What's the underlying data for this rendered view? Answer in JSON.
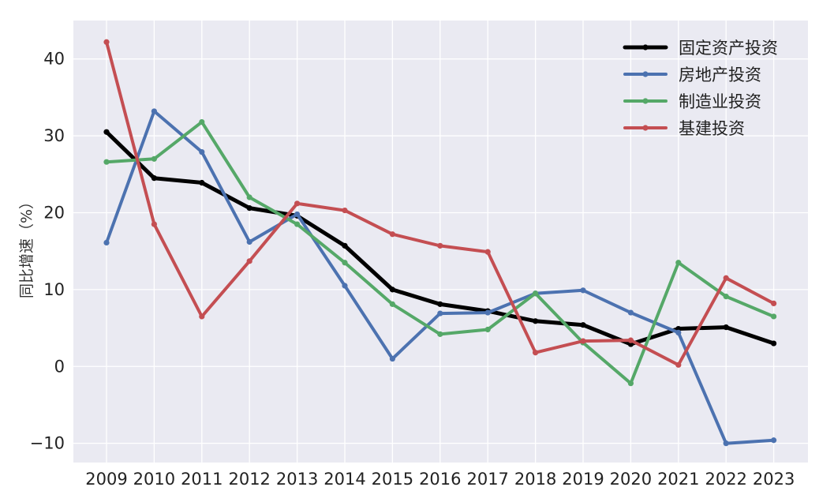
{
  "chart_data": {
    "type": "line",
    "title": "",
    "xlabel": "",
    "ylabel": "同比增速（%）",
    "categories": [
      "2009",
      "2010",
      "2011",
      "2012",
      "2013",
      "2014",
      "2015",
      "2016",
      "2017",
      "2018",
      "2019",
      "2020",
      "2021",
      "2022",
      "2023"
    ],
    "ylim": [
      -12.5,
      45
    ],
    "yticks": [
      -10,
      0,
      10,
      20,
      30,
      40
    ],
    "ytick_labels": [
      "−10",
      "0",
      "10",
      "20",
      "30",
      "40"
    ],
    "grid": true,
    "legend_position": "top-right",
    "series": [
      {
        "name": "固定资产投资",
        "color": "#000000",
        "width": 5,
        "values": [
          30.5,
          24.5,
          23.9,
          20.6,
          19.6,
          15.7,
          10.0,
          8.1,
          7.2,
          5.9,
          5.4,
          2.9,
          4.9,
          5.1,
          3.0
        ]
      },
      {
        "name": "房地产投资",
        "color": "#4C72B0",
        "width": 4,
        "values": [
          16.1,
          33.2,
          27.9,
          16.2,
          19.8,
          10.5,
          1.0,
          6.9,
          7.0,
          9.5,
          9.9,
          7.0,
          4.4,
          -10.0,
          -9.6
        ]
      },
      {
        "name": "制造业投资",
        "color": "#55A868",
        "width": 4,
        "values": [
          26.6,
          27.0,
          31.8,
          22.0,
          18.5,
          13.5,
          8.1,
          4.2,
          4.8,
          9.5,
          3.1,
          -2.2,
          13.5,
          9.1,
          6.5
        ]
      },
      {
        "name": "基建投资",
        "color": "#C44E52",
        "width": 4,
        "values": [
          42.2,
          18.5,
          6.5,
          13.7,
          21.2,
          20.3,
          17.2,
          15.7,
          14.9,
          1.8,
          3.3,
          3.4,
          0.2,
          11.5,
          8.2
        ]
      }
    ]
  }
}
